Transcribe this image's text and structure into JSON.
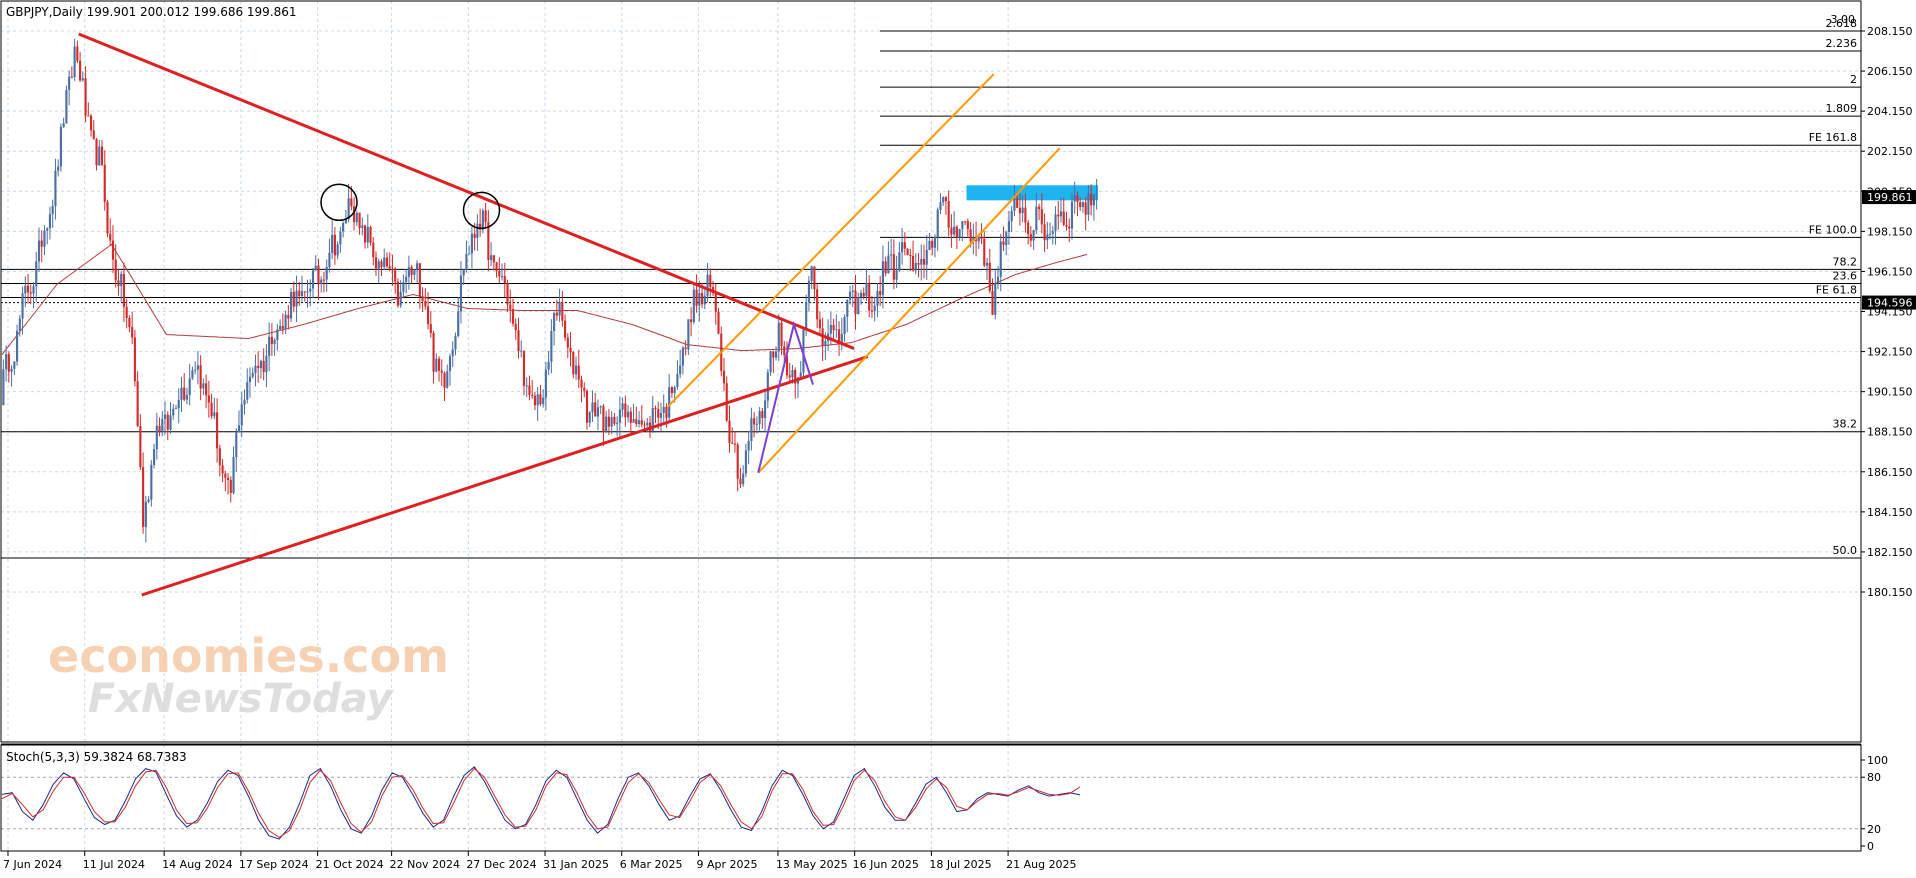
{
  "window": {
    "symbol_header": "GBPJPY,Daily  199.901 200.012 199.686 199.861"
  },
  "watermark": {
    "line1": "economies.com",
    "line2": "FxNewsToday"
  },
  "colors": {
    "bull_candle": "#4a6fa5",
    "bear_candle": "#d42a2a",
    "trendline": "#e02020",
    "channel": "#ff9900",
    "impulse": "#7b3fd6",
    "ma": "#b33a3a",
    "resistance_zone": "#1eb4f0",
    "grid": "#c9d9e8",
    "stoch_main": "#1a2b8c",
    "stoch_signal": "#d42a2a"
  },
  "chart_data": [
    {
      "type": "candlestick",
      "title": "GBPJPY,Daily  199.901 200.012 199.686 199.861",
      "ylim": [
        179.15,
        209.15
      ],
      "y_ticks": [
        "208.150",
        "206.150",
        "204.150",
        "202.150",
        "200.150",
        "198.150",
        "196.150",
        "194.150",
        "192.150",
        "190.150",
        "188.150",
        "186.150",
        "184.150",
        "182.150",
        "180.150"
      ],
      "x_ticks": [
        "7 Jun 2024",
        "11 Jul 2024",
        "14 Aug 2024",
        "17 Sep 2024",
        "21 Oct 2024",
        "22 Nov 2024",
        "27 Dec 2024",
        "31 Jan 2025",
        "6 Mar 2025",
        "9 Apr 2025",
        "13 May 2025",
        "16 Jun 2025",
        "18 Jul 2025",
        "21 Aug 2025"
      ],
      "grid": true,
      "current_price": "199.861",
      "marked_price": "194.596",
      "close_anchors": [
        {
          "i": 0,
          "c": 190.0
        },
        {
          "i": 8,
          "c": 194.2
        },
        {
          "i": 16,
          "c": 198.0
        },
        {
          "i": 22,
          "c": 202.5
        },
        {
          "i": 27,
          "c": 207.5
        },
        {
          "i": 31,
          "c": 204.0
        },
        {
          "i": 36,
          "c": 201.5
        },
        {
          "i": 42,
          "c": 196.0
        },
        {
          "i": 48,
          "c": 193.0
        },
        {
          "i": 52,
          "c": 183.5
        },
        {
          "i": 56,
          "c": 187.8
        },
        {
          "i": 64,
          "c": 189.5
        },
        {
          "i": 70,
          "c": 191.5
        },
        {
          "i": 76,
          "c": 190.0
        },
        {
          "i": 80,
          "c": 186.5
        },
        {
          "i": 84,
          "c": 185.0
        },
        {
          "i": 88,
          "c": 190.0
        },
        {
          "i": 98,
          "c": 192.5
        },
        {
          "i": 106,
          "c": 194.5
        },
        {
          "i": 114,
          "c": 195.5
        },
        {
          "i": 122,
          "c": 197.5
        },
        {
          "i": 128,
          "c": 199.5
        },
        {
          "i": 134,
          "c": 197.5
        },
        {
          "i": 140,
          "c": 196.2
        },
        {
          "i": 146,
          "c": 195.0
        },
        {
          "i": 152,
          "c": 196.5
        },
        {
          "i": 158,
          "c": 192.0
        },
        {
          "i": 162,
          "c": 190.5
        },
        {
          "i": 168,
          "c": 195.5
        },
        {
          "i": 174,
          "c": 199.0
        },
        {
          "i": 180,
          "c": 196.5
        },
        {
          "i": 186,
          "c": 194.5
        },
        {
          "i": 192,
          "c": 190.0
        },
        {
          "i": 198,
          "c": 189.5
        },
        {
          "i": 202,
          "c": 194.5
        },
        {
          "i": 208,
          "c": 192.0
        },
        {
          "i": 214,
          "c": 189.5
        },
        {
          "i": 222,
          "c": 188.5
        },
        {
          "i": 228,
          "c": 189.2
        },
        {
          "i": 234,
          "c": 188.5
        },
        {
          "i": 240,
          "c": 189.0
        },
        {
          "i": 246,
          "c": 190.5
        },
        {
          "i": 252,
          "c": 194.0
        },
        {
          "i": 258,
          "c": 195.5
        },
        {
          "i": 262,
          "c": 193.5
        },
        {
          "i": 266,
          "c": 188.0
        },
        {
          "i": 270,
          "c": 186.0
        },
        {
          "i": 274,
          "c": 188.0
        },
        {
          "i": 278,
          "c": 189.5
        },
        {
          "i": 284,
          "c": 193.5
        },
        {
          "i": 288,
          "c": 190.5
        },
        {
          "i": 292,
          "c": 192.0
        },
        {
          "i": 296,
          "c": 196.0
        },
        {
          "i": 300,
          "c": 193.0
        },
        {
          "i": 306,
          "c": 193.0
        },
        {
          "i": 312,
          "c": 195.0
        },
        {
          "i": 318,
          "c": 194.5
        },
        {
          "i": 324,
          "c": 196.5
        },
        {
          "i": 330,
          "c": 197.0
        },
        {
          "i": 336,
          "c": 196.0
        },
        {
          "i": 342,
          "c": 199.2
        },
        {
          "i": 348,
          "c": 198.5
        },
        {
          "i": 354,
          "c": 198.2
        },
        {
          "i": 358,
          "c": 197.5
        },
        {
          "i": 362,
          "c": 194.8
        },
        {
          "i": 366,
          "c": 197.5
        },
        {
          "i": 370,
          "c": 199.5
        },
        {
          "i": 376,
          "c": 198.5
        },
        {
          "i": 382,
          "c": 198.3
        },
        {
          "i": 388,
          "c": 199.0
        },
        {
          "i": 394,
          "c": 199.6
        },
        {
          "i": 400,
          "c": 199.86
        }
      ],
      "ma_anchors": [
        {
          "i": 0,
          "v": 192.0
        },
        {
          "i": 20,
          "v": 195.5
        },
        {
          "i": 40,
          "v": 197.5
        },
        {
          "i": 60,
          "v": 193.0
        },
        {
          "i": 90,
          "v": 192.8
        },
        {
          "i": 110,
          "v": 193.5
        },
        {
          "i": 130,
          "v": 194.3
        },
        {
          "i": 150,
          "v": 195.0
        },
        {
          "i": 170,
          "v": 194.3
        },
        {
          "i": 190,
          "v": 194.2
        },
        {
          "i": 210,
          "v": 194.2
        },
        {
          "i": 230,
          "v": 193.5
        },
        {
          "i": 250,
          "v": 192.5
        },
        {
          "i": 270,
          "v": 192.2
        },
        {
          "i": 290,
          "v": 192.3
        },
        {
          "i": 310,
          "v": 192.6
        },
        {
          "i": 330,
          "v": 193.5
        },
        {
          "i": 350,
          "v": 194.8
        },
        {
          "i": 370,
          "v": 196.0
        },
        {
          "i": 385,
          "v": 196.6
        },
        {
          "i": 396,
          "v": 197.0
        }
      ],
      "bar_count": 400,
      "fib_levels": [
        {
          "label": "2.618",
          "price": 208.15
        },
        {
          "label": "2.236",
          "price": 207.15
        },
        {
          "label": "2",
          "price": 205.35
        },
        {
          "label": "1.809",
          "price": 203.9
        },
        {
          "label": "FE 161.8",
          "price": 202.45
        },
        {
          "label": "FE 100.0",
          "price": 197.85
        },
        {
          "label": "78.2",
          "price": 196.25
        },
        {
          "label": "23.6",
          "price": 195.55
        },
        {
          "label": "FE 61.8",
          "price": 194.85
        },
        {
          "label": "38.2",
          "price": 188.15
        },
        {
          "label": "50.0",
          "price": 181.85
        }
      ],
      "fib_top_label_overlap": "3.00",
      "resistance_zone": {
        "from_bar": 352,
        "to_bar": 400,
        "low": 199.7,
        "high": 200.45
      },
      "downtrend_line": {
        "from": {
          "i": 28,
          "p": 208.0
        },
        "to": {
          "i": 311,
          "p": 192.3
        }
      },
      "uptrend_line": {
        "from": {
          "i": 51,
          "p": 180.0
        },
        "to": {
          "i": 316,
          "p": 191.9
        }
      },
      "channel_lower": {
        "from": {
          "i": 276,
          "p": 186.1
        },
        "to": {
          "i": 386,
          "p": 202.3
        }
      },
      "channel_upper": {
        "from": {
          "i": 243,
          "p": 189.4
        },
        "to": {
          "i": 362,
          "p": 206.0
        }
      },
      "impulse_line": [
        {
          "i": 276,
          "p": 186.1
        },
        {
          "i": 289,
          "p": 193.5
        },
        {
          "i": 296,
          "p": 190.5
        }
      ],
      "circles": [
        {
          "i": 123,
          "p": 199.6
        },
        {
          "i": 175,
          "p": 199.2
        }
      ]
    },
    {
      "type": "line",
      "title": "Stoch(5,3,3) 59.3824 68.7383",
      "ylim": [
        0,
        100
      ],
      "y_ticks": [
        "100",
        "80",
        "20",
        "0"
      ],
      "series": [
        {
          "name": "Stoch(5,3,3) 59.3824",
          "values": [
            60,
            62,
            40,
            30,
            48,
            72,
            85,
            78,
            55,
            33,
            25,
            30,
            52,
            78,
            90,
            86,
            60,
            35,
            22,
            30,
            50,
            75,
            88,
            82,
            58,
            30,
            12,
            8,
            22,
            50,
            82,
            90,
            70,
            42,
            20,
            15,
            35,
            65,
            85,
            80,
            60,
            38,
            22,
            30,
            58,
            82,
            92,
            75,
            52,
            30,
            20,
            25,
            48,
            76,
            88,
            80,
            55,
            30,
            15,
            25,
            55,
            80,
            85,
            70,
            48,
            30,
            35,
            58,
            78,
            84,
            65,
            42,
            22,
            18,
            40,
            70,
            88,
            82,
            60,
            35,
            20,
            28,
            55,
            82,
            90,
            70,
            45,
            30,
            30,
            50,
            72,
            80,
            62,
            40,
            42,
            55,
            62,
            60,
            58,
            65,
            70,
            62,
            58,
            60,
            62,
            59.38
          ]
        },
        {
          "name": "68.7383",
          "values": [
            55,
            61,
            48,
            34,
            42,
            64,
            80,
            80,
            62,
            40,
            28,
            28,
            45,
            70,
            86,
            88,
            68,
            42,
            26,
            27,
            44,
            68,
            84,
            85,
            64,
            38,
            18,
            10,
            18,
            42,
            74,
            88,
            76,
            50,
            26,
            16,
            28,
            58,
            80,
            82,
            66,
            44,
            26,
            27,
            50,
            76,
            90,
            80,
            58,
            36,
            22,
            23,
            42,
            70,
            85,
            83,
            62,
            36,
            20,
            22,
            48,
            74,
            84,
            74,
            54,
            36,
            33,
            52,
            74,
            83,
            70,
            48,
            28,
            20,
            34,
            64,
            84,
            84,
            66,
            40,
            24,
            25,
            48,
            76,
            88,
            76,
            52,
            34,
            30,
            45,
            66,
            78,
            68,
            46,
            42,
            52,
            60,
            61,
            59,
            63,
            68,
            64,
            60,
            59,
            61,
            68.74
          ]
        }
      ]
    }
  ]
}
